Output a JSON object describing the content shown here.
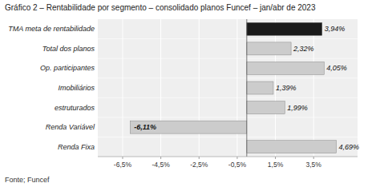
{
  "chart_data": {
    "type": "bar",
    "orientation": "horizontal",
    "title": "Gráfico 2 – Rentabilidade por segmento – consolidado planos Funcef – jan/abr de 2023",
    "source": "Fonte; Funcef",
    "categories": [
      "TMA meta de rentabilidade",
      "Total dos planos",
      "Op. participantes",
      "Imobiliários",
      "estruturados",
      "Renda Variável",
      "Renda Fixa"
    ],
    "values": [
      3.94,
      2.32,
      4.05,
      1.39,
      1.99,
      -6.11,
      4.69
    ],
    "value_labels": [
      "3,94%",
      "2,32%",
      "4,05%",
      "1,39%",
      "1,99%",
      "-6,11%",
      "4,69%"
    ],
    "colors": [
      "#1a1a1a",
      "#cccccc",
      "#cccccc",
      "#cccccc",
      "#cccccc",
      "#cccccc",
      "#cccccc"
    ],
    "xlim": [
      -7.8,
      5.8
    ],
    "xticks": [
      {
        "value": -6.5,
        "label": "-6,5%"
      },
      {
        "value": -4.5,
        "label": "-4,5%"
      },
      {
        "value": -2.5,
        "label": "-2,5%"
      },
      {
        "value": -0.5,
        "label": "-0,5%"
      },
      {
        "value": 1.5,
        "label": "1,5%"
      },
      {
        "value": 3.5,
        "label": "3,5%"
      }
    ],
    "grid": true,
    "data_labels": true
  }
}
